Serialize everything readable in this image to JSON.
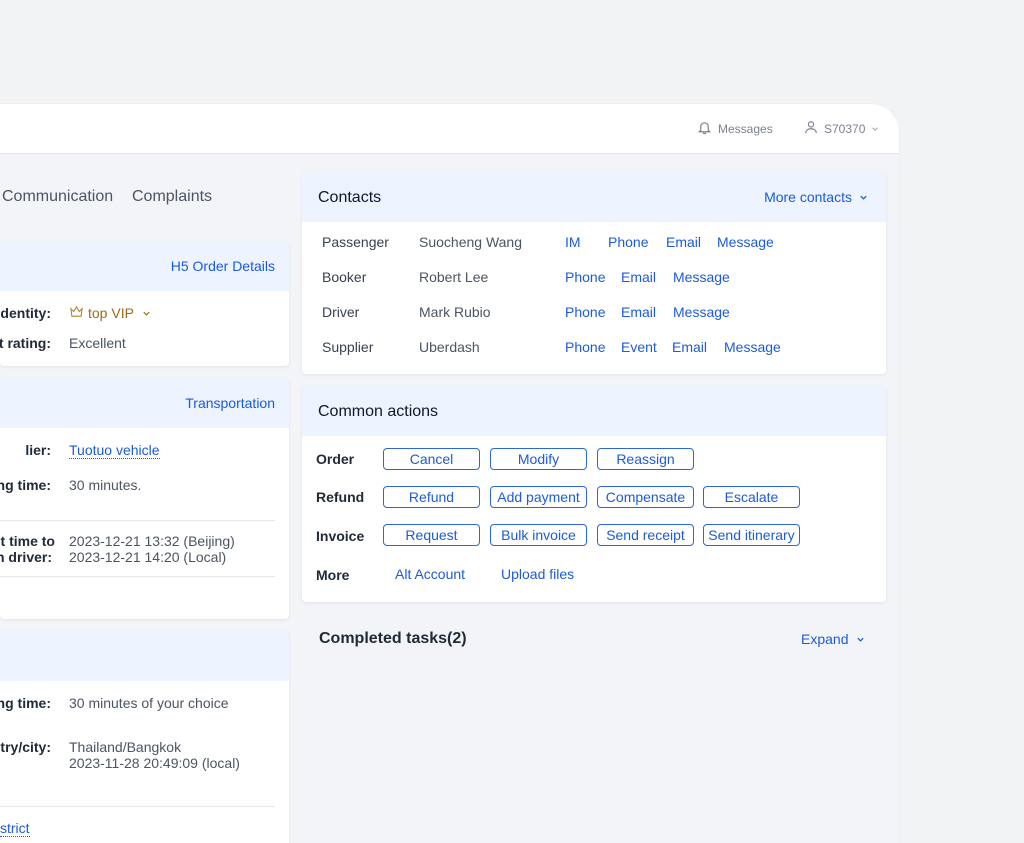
{
  "header": {
    "messages_label": "Messages",
    "user_label": "S70370"
  },
  "tabs": [
    "Communication",
    "Complaints"
  ],
  "order_card": {
    "link": "H5 Order Details",
    "identity_label": "Identity:",
    "identity_value": "top VIP",
    "rating_label": "t rating:",
    "rating_value": "Excellent"
  },
  "transport_card": {
    "link": "Transportation",
    "supplier_label": "lier:",
    "supplier_value": "Tuotuo vehicle",
    "waiting_label": "ng time:",
    "waiting_value": "30 minutes.",
    "contact_label_1": "t time to",
    "contact_label_2": "n driver:",
    "contact_time_beijing": "2023-12-21 13:32 (Beijing)",
    "contact_time_local": "2023-12-21 14:20 (Local)"
  },
  "third_card": {
    "waiting_label": "ng time:",
    "waiting_value": "30 minutes of your choice",
    "city_label": "try/city:",
    "city_value": "Thailand/Bangkok",
    "city_time": "2023-11-28 20:49:09 (local)",
    "district_link": "strict"
  },
  "contacts": {
    "title": "Contacts",
    "more": "More contacts",
    "rows": [
      {
        "role": "Passenger",
        "name": "Suocheng Wang",
        "actions": [
          "IM",
          "Phone",
          "Email",
          "Message"
        ]
      },
      {
        "role": "Booker",
        "name": "Robert Lee",
        "actions": [
          "Phone",
          "Email",
          "Message"
        ]
      },
      {
        "role": "Driver",
        "name": "Mark Rubio",
        "actions": [
          "Phone",
          "Email",
          "Message"
        ]
      },
      {
        "role": "Supplier",
        "name": "Uberdash",
        "actions": [
          "Phone",
          "Event",
          "Email",
          "Message"
        ]
      }
    ]
  },
  "common_actions": {
    "title": "Common actions",
    "order_label": "Order",
    "order_buttons": [
      "Cancel",
      "Modify",
      "Reassign"
    ],
    "refund_label": "Refund",
    "refund_buttons": [
      "Refund",
      "Add payment",
      "Compensate",
      "Escalate"
    ],
    "invoice_label": "Invoice",
    "invoice_buttons": [
      "Request",
      "Bulk invoice",
      "Send receipt",
      "Send itinerary"
    ],
    "more_label": "More",
    "more_links": [
      "Alt Account",
      "Upload files"
    ]
  },
  "completed": {
    "title": "Completed tasks(2)",
    "expand": "Expand"
  },
  "colors": {
    "accent": "#1d5bd8",
    "header_tint": "#edf3ff",
    "vip_gold": "#9a6a1c"
  }
}
